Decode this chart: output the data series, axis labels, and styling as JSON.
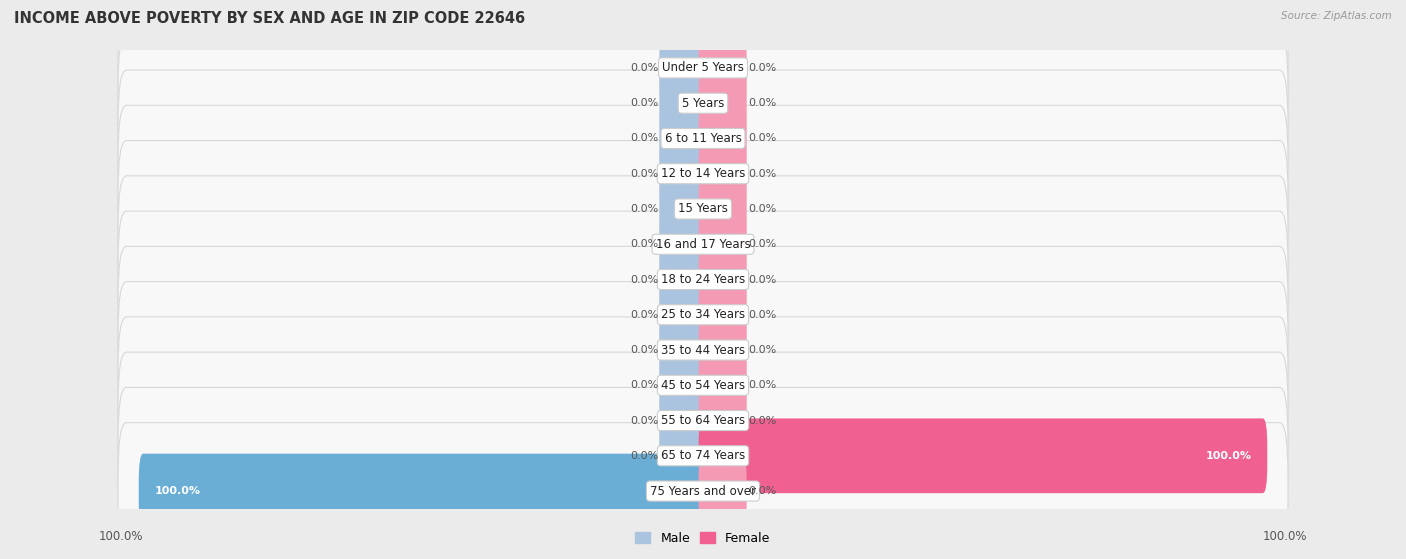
{
  "title": "INCOME ABOVE POVERTY BY SEX AND AGE IN ZIP CODE 22646",
  "source": "Source: ZipAtlas.com",
  "categories": [
    "Under 5 Years",
    "5 Years",
    "6 to 11 Years",
    "12 to 14 Years",
    "15 Years",
    "16 and 17 Years",
    "18 to 24 Years",
    "25 to 34 Years",
    "35 to 44 Years",
    "45 to 54 Years",
    "55 to 64 Years",
    "65 to 74 Years",
    "75 Years and over"
  ],
  "male_values": [
    0.0,
    0.0,
    0.0,
    0.0,
    0.0,
    0.0,
    0.0,
    0.0,
    0.0,
    0.0,
    0.0,
    0.0,
    100.0
  ],
  "female_values": [
    0.0,
    0.0,
    0.0,
    0.0,
    0.0,
    0.0,
    0.0,
    0.0,
    0.0,
    0.0,
    0.0,
    100.0,
    0.0
  ],
  "male_color": "#aac4e0",
  "female_color": "#f49ab5",
  "male_color_full": "#6aaed6",
  "female_color_full": "#f06090",
  "male_label": "Male",
  "female_label": "Female",
  "bar_height": 0.52,
  "bg_color": "#ebebeb",
  "row_bg_color": "#f5f5f5",
  "title_fontsize": 10.5,
  "label_fontsize": 8.5,
  "value_fontsize": 8.0,
  "axis_label_fontsize": 8.5,
  "xlim": 100,
  "stub_size": 7.0
}
